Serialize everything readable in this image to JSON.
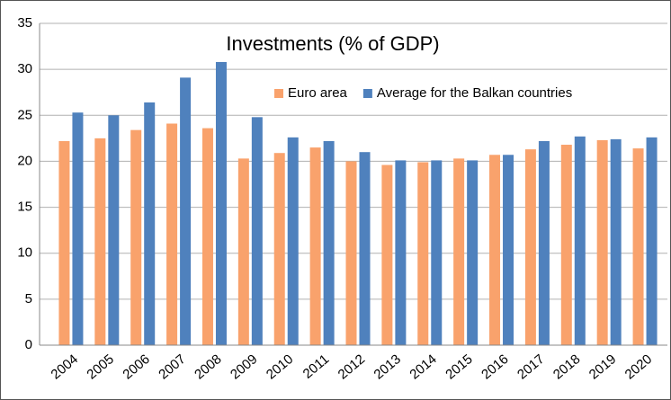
{
  "chart_data": {
    "type": "bar",
    "title": "Investments (% of GDP)",
    "categories": [
      "2004",
      "2005",
      "2006",
      "2007",
      "2008",
      "2009",
      "2010",
      "2011",
      "2012",
      "2013",
      "2014",
      "2015",
      "2016",
      "2017",
      "2018",
      "2019",
      "2020"
    ],
    "series": [
      {
        "name": "Euro area",
        "color": "#f9a26c",
        "values": [
          22.2,
          22.5,
          23.4,
          24.1,
          23.6,
          20.3,
          20.9,
          21.5,
          20.0,
          19.6,
          19.9,
          20.3,
          20.7,
          21.3,
          21.8,
          22.3,
          21.4
        ]
      },
      {
        "name": "Average for the Balkan countries",
        "color": "#4f81bd",
        "values": [
          25.3,
          25.0,
          26.4,
          29.1,
          30.8,
          24.8,
          22.6,
          22.2,
          21.0,
          20.1,
          20.1,
          20.1,
          20.7,
          22.2,
          22.7,
          22.4,
          22.6
        ]
      }
    ],
    "ylim": [
      0,
      35
    ],
    "yticks": [
      0,
      5,
      10,
      15,
      20,
      25,
      30,
      35
    ],
    "grid": true
  }
}
